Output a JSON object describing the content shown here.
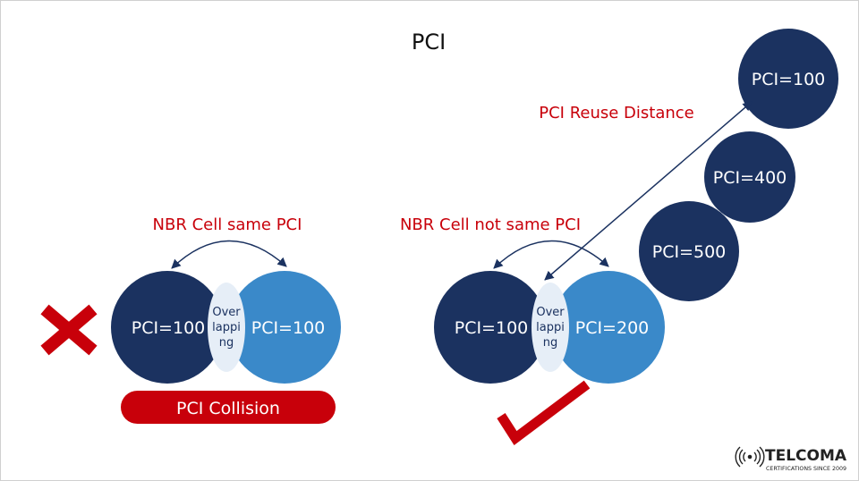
{
  "title": "PCI",
  "colors": {
    "dark": "#1b3260",
    "light": "#3a89c9",
    "overlap": "#e6eef7",
    "red": "#c8000a",
    "arrow": "#1b3260"
  },
  "left": {
    "label": "NBR Cell same PCI",
    "cell_a": "PCI=100",
    "cell_b": "PCI=100",
    "overlap": [
      "Over",
      "lappi",
      "ng"
    ],
    "result": "PCI Collision",
    "mark_icon": "cross-icon"
  },
  "right": {
    "label": "NBR Cell not same PCI",
    "cell_a": "PCI=100",
    "cell_b": "PCI=200",
    "overlap": [
      "Over",
      "lappi",
      "ng"
    ],
    "mark_icon": "check-icon"
  },
  "reuse": {
    "label": "PCI Reuse Distance",
    "cells": [
      "PCI=500",
      "PCI=400",
      "PCI=100"
    ]
  },
  "logo": {
    "name": "TELCOMA",
    "tagline": "CERTIFICATIONS SINCE 2009"
  }
}
